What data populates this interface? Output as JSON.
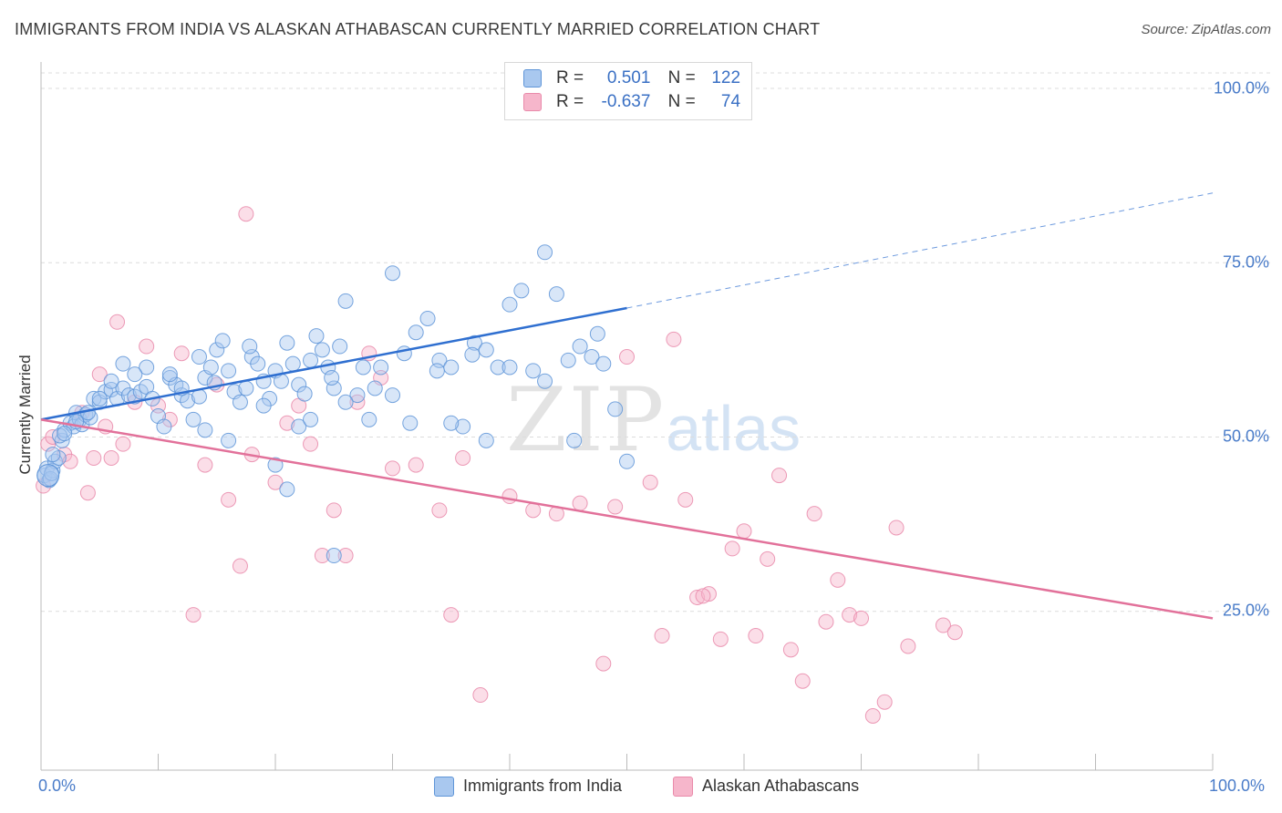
{
  "title": "IMMIGRANTS FROM INDIA VS ALASKAN ATHABASCAN CURRENTLY MARRIED CORRELATION CHART",
  "source": "Source: ZipAtlas.com",
  "watermark": {
    "zip": "ZIP",
    "atlas": "atlas"
  },
  "colors": {
    "blue": "#a9c8ef",
    "blue_stroke": "#5f95d8",
    "blue_line": "#2f6fd0",
    "pink": "#f6b6cb",
    "pink_stroke": "#e98aaa",
    "pink_line": "#e2719a",
    "tick_text": "#4a7cc9",
    "grid": "#dcdcdc"
  },
  "legend": {
    "rows": [
      {
        "r_label": "R =",
        "r_value": "0.501",
        "n_label": "N =",
        "n_value": "122"
      },
      {
        "r_label": "R =",
        "r_value": "-0.637",
        "n_label": "N =",
        "n_value": "74"
      }
    ]
  },
  "bottom_legend": {
    "series1": "Immigrants from India",
    "series2": "Alaskan Athabascans"
  },
  "chart_data": {
    "type": "scatter",
    "title": "IMMIGRANTS FROM INDIA VS ALASKAN ATHABASCAN CURRENTLY MARRIED CORRELATION CHART",
    "xlabel": "",
    "ylabel": "Currently Married",
    "xlim": [
      0,
      100
    ],
    "ylim": [
      0,
      100
    ],
    "x_tick_labels": [
      "0.0%",
      "100.0%"
    ],
    "y_tick_labels": [
      "25.0%",
      "50.0%",
      "75.0%",
      "100.0%"
    ],
    "y_ticks": [
      25,
      50,
      75,
      100
    ],
    "grid": true,
    "legend_position": "top-center",
    "series": [
      {
        "name": "Immigrants from India",
        "color": "#a9c8ef",
        "R": 0.501,
        "N": 122,
        "trend": {
          "x0": 0,
          "y0": 52.5,
          "x1": 50,
          "y1": 68.5,
          "dashed_to_x": 100,
          "dashed_to_y": 85
        },
        "points": [
          [
            0.3,
            44.5
          ],
          [
            0.5,
            45.5
          ],
          [
            0.7,
            43.8
          ],
          [
            1.0,
            45.2
          ],
          [
            0.8,
            44.0
          ],
          [
            1.2,
            46.5
          ],
          [
            1.5,
            47.0
          ],
          [
            1.8,
            49.5
          ],
          [
            2.0,
            51.0
          ],
          [
            1.6,
            50.2
          ],
          [
            2.5,
            52.0
          ],
          [
            2.8,
            51.5
          ],
          [
            3.0,
            53.5
          ],
          [
            3.3,
            52.5
          ],
          [
            3.5,
            51.8
          ],
          [
            3.8,
            53.2
          ],
          [
            4.2,
            52.8
          ],
          [
            4.5,
            55.5
          ],
          [
            5.0,
            55.0
          ],
          [
            5.5,
            56.5
          ],
          [
            6.0,
            56.8
          ],
          [
            6.5,
            55.5
          ],
          [
            7.0,
            57.0
          ],
          [
            7.5,
            56.0
          ],
          [
            8.0,
            55.8
          ],
          [
            8.5,
            56.5
          ],
          [
            9.0,
            57.2
          ],
          [
            9.5,
            55.5
          ],
          [
            10.0,
            53.0
          ],
          [
            10.5,
            51.5
          ],
          [
            11.0,
            58.5
          ],
          [
            11.5,
            57.5
          ],
          [
            12.0,
            56.0
          ],
          [
            12.5,
            55.2
          ],
          [
            13.0,
            52.5
          ],
          [
            13.5,
            55.8
          ],
          [
            14.0,
            58.5
          ],
          [
            14.5,
            60.0
          ],
          [
            15.0,
            62.5
          ],
          [
            15.5,
            63.8
          ],
          [
            16.0,
            59.5
          ],
          [
            16.5,
            56.5
          ],
          [
            17.0,
            55.0
          ],
          [
            17.5,
            57.0
          ],
          [
            18.0,
            61.5
          ],
          [
            18.5,
            60.5
          ],
          [
            19.0,
            58.0
          ],
          [
            19.5,
            55.5
          ],
          [
            20.0,
            59.5
          ],
          [
            20.5,
            58.0
          ],
          [
            21.0,
            63.5
          ],
          [
            21.5,
            60.5
          ],
          [
            22.0,
            57.5
          ],
          [
            22.5,
            56.2
          ],
          [
            23.0,
            61.0
          ],
          [
            23.5,
            64.5
          ],
          [
            24.0,
            62.5
          ],
          [
            24.5,
            60.0
          ],
          [
            25.0,
            57.0
          ],
          [
            25.5,
            63.0
          ],
          [
            26.0,
            69.5
          ],
          [
            27.0,
            56.0
          ],
          [
            28.0,
            52.5
          ],
          [
            29.0,
            60.0
          ],
          [
            30.0,
            73.5
          ],
          [
            31.0,
            62.0
          ],
          [
            32.0,
            65.0
          ],
          [
            33.0,
            67.0
          ],
          [
            34.0,
            61.0
          ],
          [
            35.0,
            60.0
          ],
          [
            36.0,
            51.5
          ],
          [
            37.0,
            63.5
          ],
          [
            38.0,
            62.5
          ],
          [
            39.0,
            60.0
          ],
          [
            40.0,
            69.0
          ],
          [
            41.0,
            71.0
          ],
          [
            42.0,
            59.5
          ],
          [
            43.0,
            58.0
          ],
          [
            44.0,
            70.5
          ],
          [
            45.0,
            61.0
          ],
          [
            46.0,
            63.0
          ],
          [
            47.0,
            61.5
          ],
          [
            48.0,
            60.5
          ],
          [
            49.0,
            54.0
          ],
          [
            50.0,
            46.5
          ],
          [
            43.0,
            76.5
          ],
          [
            40.0,
            60.0
          ],
          [
            35.0,
            52.0
          ],
          [
            38.0,
            49.5
          ],
          [
            30.0,
            56.0
          ],
          [
            20.0,
            46.0
          ],
          [
            16.0,
            49.5
          ],
          [
            14.0,
            51.0
          ],
          [
            12.0,
            57.0
          ],
          [
            11.0,
            59.0
          ],
          [
            9.0,
            60.0
          ],
          [
            8.0,
            59.0
          ],
          [
            7.0,
            60.5
          ],
          [
            6.0,
            58.0
          ],
          [
            5.0,
            55.5
          ],
          [
            4.0,
            53.5
          ],
          [
            3.0,
            52.2
          ],
          [
            2.0,
            50.5
          ],
          [
            1.0,
            47.5
          ],
          [
            25.0,
            33.0
          ],
          [
            21.0,
            42.5
          ],
          [
            22.0,
            51.5
          ],
          [
            23.0,
            52.5
          ],
          [
            26.0,
            55.0
          ],
          [
            27.5,
            60.0
          ],
          [
            13.5,
            61.5
          ],
          [
            14.8,
            57.8
          ],
          [
            17.8,
            63.0
          ],
          [
            19.0,
            54.5
          ],
          [
            24.8,
            58.5
          ],
          [
            28.5,
            57.0
          ],
          [
            31.5,
            52.0
          ],
          [
            33.8,
            59.5
          ],
          [
            36.8,
            61.8
          ],
          [
            45.5,
            49.5
          ],
          [
            47.5,
            64.8
          ],
          [
            0.9,
            44.8
          ]
        ]
      },
      {
        "name": "Alaskan Athabascans",
        "color": "#f6b6cb",
        "R": -0.637,
        "N": 74,
        "trend": {
          "x0": 0,
          "y0": 52.5,
          "x1": 100,
          "y1": 24.0
        },
        "points": [
          [
            0.2,
            43.0
          ],
          [
            0.6,
            49.0
          ],
          [
            1.0,
            50.0
          ],
          [
            2.0,
            47.5
          ],
          [
            2.5,
            46.5
          ],
          [
            3.5,
            53.5
          ],
          [
            4.0,
            42.0
          ],
          [
            4.5,
            47.0
          ],
          [
            5.0,
            59.0
          ],
          [
            5.5,
            51.5
          ],
          [
            6.0,
            47.0
          ],
          [
            6.5,
            66.5
          ],
          [
            7.0,
            49.0
          ],
          [
            8.0,
            55.0
          ],
          [
            9.0,
            63.0
          ],
          [
            10.0,
            54.5
          ],
          [
            11.0,
            52.5
          ],
          [
            12.0,
            62.0
          ],
          [
            13.0,
            24.5
          ],
          [
            14.0,
            46.0
          ],
          [
            15.0,
            57.5
          ],
          [
            16.0,
            41.0
          ],
          [
            17.0,
            31.5
          ],
          [
            17.5,
            82.0
          ],
          [
            18.0,
            47.5
          ],
          [
            20.0,
            43.5
          ],
          [
            21.0,
            52.0
          ],
          [
            22.0,
            54.5
          ],
          [
            23.0,
            49.0
          ],
          [
            24.0,
            33.0
          ],
          [
            25.0,
            39.5
          ],
          [
            26.0,
            33.0
          ],
          [
            27.0,
            55.0
          ],
          [
            28.0,
            62.0
          ],
          [
            29.0,
            58.5
          ],
          [
            30.0,
            45.5
          ],
          [
            32.0,
            46.0
          ],
          [
            34.0,
            39.5
          ],
          [
            35.0,
            24.5
          ],
          [
            36.0,
            47.0
          ],
          [
            37.5,
            13.0
          ],
          [
            40.0,
            41.5
          ],
          [
            42.0,
            39.5
          ],
          [
            44.0,
            39.0
          ],
          [
            46.0,
            40.5
          ],
          [
            48.0,
            17.5
          ],
          [
            49.0,
            40.0
          ],
          [
            50.0,
            61.5
          ],
          [
            52.0,
            43.5
          ],
          [
            53.0,
            21.5
          ],
          [
            54.0,
            64.0
          ],
          [
            55.0,
            41.0
          ],
          [
            56.0,
            27.0
          ],
          [
            57.0,
            27.5
          ],
          [
            58.0,
            21.0
          ],
          [
            59.0,
            34.0
          ],
          [
            60.0,
            36.5
          ],
          [
            61.0,
            21.5
          ],
          [
            62.0,
            32.5
          ],
          [
            63.0,
            44.5
          ],
          [
            64.0,
            19.5
          ],
          [
            65.0,
            15.0
          ],
          [
            66.0,
            39.0
          ],
          [
            67.0,
            23.5
          ],
          [
            68.0,
            29.5
          ],
          [
            69.0,
            24.5
          ],
          [
            70.0,
            24.0
          ],
          [
            71.0,
            10.0
          ],
          [
            72.0,
            12.0
          ],
          [
            73.0,
            37.0
          ],
          [
            74.0,
            20.0
          ],
          [
            77.0,
            23.0
          ],
          [
            78.0,
            22.0
          ],
          [
            56.5,
            27.2
          ]
        ]
      }
    ]
  }
}
